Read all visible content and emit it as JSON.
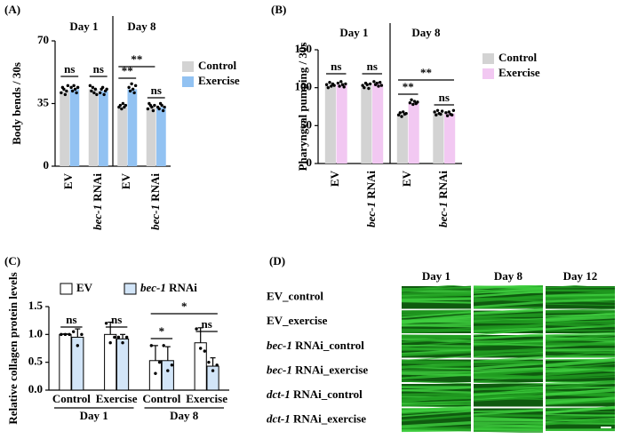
{
  "chart_data": [
    {
      "type": "bar",
      "panel_label": "(A)",
      "y_label": "Body bends / 30s",
      "categories": [
        "EV",
        "bec-1 RNAi",
        "EV",
        "bec-1 RNAi"
      ],
      "group_labels": [
        "Day 1",
        "Day 8"
      ],
      "series": [
        {
          "name": "Control",
          "color": "#d3d3d3",
          "values": [
            42,
            43,
            33,
            33
          ],
          "points": [
            [
              41,
              44,
              43,
              40,
              42,
              45
            ],
            [
              45,
              42,
              44,
              41,
              43,
              40
            ],
            [
              33,
              34,
              32,
              35,
              33,
              34
            ],
            [
              32,
              35,
              34,
              33,
              31,
              34
            ]
          ]
        },
        {
          "name": "Exercise",
          "color": "#92c2f2",
          "values": [
            43,
            42,
            43,
            33
          ],
          "points": [
            [
              44,
              42,
              45,
              43,
              41,
              44
            ],
            [
              41,
              43,
              44,
              40,
              42,
              43
            ],
            [
              44,
              42,
              46,
              43,
              41,
              45
            ],
            [
              33,
              32,
              35,
              34,
              31,
              33
            ]
          ]
        }
      ],
      "ylim": [
        0,
        70
      ],
      "yticks": [
        0,
        35,
        70
      ],
      "annotations": [
        "ns",
        "ns",
        "**",
        "ns",
        "**"
      ]
    },
    {
      "type": "bar",
      "panel_label": "(B)",
      "y_label": "Pharyngeal pumping / 30s",
      "categories": [
        "EV",
        "bec-1 RNAi",
        "EV",
        "bec-1 RNAi"
      ],
      "group_labels": [
        "Day 1",
        "Day 8"
      ],
      "series": [
        {
          "name": "Control",
          "color": "#d3d3d3",
          "values": [
            103,
            103,
            65,
            67
          ],
          "points": [
            [
              104,
              100,
              107,
              102,
              105,
              103
            ],
            [
              103,
              100,
              106,
              104,
              99,
              105
            ],
            [
              64,
              67,
              62,
              68,
              65,
              66
            ],
            [
              68,
              64,
              70,
              66,
              65,
              69
            ]
          ]
        },
        {
          "name": "Exercise",
          "color": "#f2c8f2",
          "values": [
            104,
            105,
            80,
            66
          ],
          "points": [
            [
              106,
              102,
              108,
              104,
              101,
              105
            ],
            [
              108,
              104,
              106,
              102,
              107,
              103
            ],
            [
              80,
              84,
              78,
              82,
              79,
              81
            ],
            [
              67,
              63,
              68,
              65,
              64,
              70
            ]
          ]
        }
      ],
      "ylim": [
        0,
        150
      ],
      "yticks": [
        0,
        50,
        100,
        150
      ],
      "annotations": [
        "ns",
        "ns",
        "**",
        "ns",
        "**"
      ]
    },
    {
      "type": "bar",
      "panel_label": "(C)",
      "y_label": "Relative collagen protein levels",
      "categories": [
        "Control",
        "Exercise",
        "Control",
        "Exercise"
      ],
      "group_labels": [
        "Day 1",
        "Day 8"
      ],
      "series": [
        {
          "name": "EV",
          "color": "#ffffff",
          "values": [
            1.0,
            1.0,
            0.53,
            0.85
          ],
          "errors": [
            0.01,
            0.22,
            0.27,
            0.27
          ],
          "points": [
            [
              1,
              1,
              1
            ],
            [
              1.2,
              0.85,
              0.95
            ],
            [
              0.8,
              0.3,
              0.5
            ],
            [
              1.1,
              0.75,
              0.7
            ]
          ]
        },
        {
          "name": "bec-1 RNAi",
          "color": "#d2e5f8",
          "values": [
            0.95,
            0.92,
            0.53,
            0.43
          ],
          "errors": [
            0.15,
            0.08,
            0.25,
            0.15
          ],
          "points": [
            [
              1.05,
              0.8,
              1.0
            ],
            [
              0.95,
              0.85,
              0.95
            ],
            [
              0.8,
              0.35,
              0.45
            ],
            [
              0.5,
              0.35,
              0.45
            ]
          ]
        }
      ],
      "ylim": [
        0,
        1.5
      ],
      "yticks": [
        {
          "value": 0,
          "label": "0.0"
        },
        0.5,
        {
          "value": 1,
          "label": "1.0"
        },
        1.5
      ],
      "annotations": [
        "ns",
        "ns",
        "*",
        "ns",
        "*"
      ]
    }
  ],
  "panel_d": {
    "panel_label": "(D)",
    "columns": [
      "Day 1",
      "Day 8",
      "Day 12"
    ],
    "rows": [
      "EV_control",
      "EV_exercise",
      "bec-1 RNAi_control",
      "bec-1 RNAi_exercise",
      "dct-1 RNAi_control",
      "dct-1 RNAi_exercise"
    ]
  }
}
